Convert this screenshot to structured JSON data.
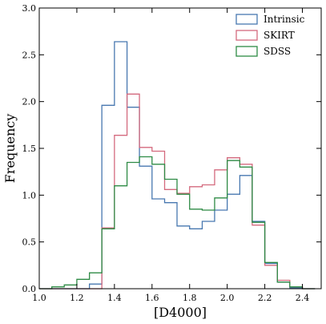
{
  "chart_data": {
    "type": "histogram",
    "xlabel": "[D4000]",
    "ylabel": "Frequency",
    "xlim": [
      1.0,
      2.5
    ],
    "ylim": [
      0.0,
      3.0
    ],
    "x_ticks": [
      "1.0",
      "1.2",
      "1.4",
      "1.6",
      "1.8",
      "2.0",
      "2.2",
      "2.4"
    ],
    "y_ticks": [
      "0.0",
      "0.5",
      "1.0",
      "1.5",
      "2.0",
      "2.5",
      "3.0"
    ],
    "bin_edges": [
      1.0,
      1.067,
      1.133,
      1.2,
      1.267,
      1.333,
      1.4,
      1.467,
      1.533,
      1.6,
      1.667,
      1.733,
      1.8,
      1.867,
      1.933,
      2.0,
      2.067,
      2.133,
      2.2,
      2.267,
      2.333,
      2.4,
      2.467
    ],
    "legend_position": "top-right",
    "series": [
      {
        "name": "Intrinsic",
        "color": "#4878b0",
        "values": [
          0.0,
          0.0,
          0.0,
          0.0,
          0.05,
          1.96,
          2.64,
          1.94,
          1.31,
          0.96,
          0.92,
          0.67,
          0.64,
          0.72,
          0.84,
          1.01,
          1.21,
          0.72,
          0.27,
          0.07,
          0.01,
          0.0
        ]
      },
      {
        "name": "SKIRT",
        "color": "#d46a7e",
        "values": [
          0.0,
          0.0,
          0.0,
          0.0,
          0.0,
          0.65,
          1.64,
          2.08,
          1.51,
          1.47,
          1.06,
          1.02,
          1.09,
          1.11,
          1.27,
          1.4,
          1.33,
          0.68,
          0.25,
          0.09,
          0.02,
          0.0
        ]
      },
      {
        "name": "SDSS",
        "color": "#2e8b45",
        "values": [
          0.0,
          0.02,
          0.04,
          0.1,
          0.17,
          0.64,
          1.1,
          1.35,
          1.41,
          1.33,
          1.17,
          1.01,
          0.85,
          0.84,
          0.97,
          1.37,
          1.3,
          0.71,
          0.28,
          0.07,
          0.02,
          0.0
        ]
      }
    ]
  }
}
